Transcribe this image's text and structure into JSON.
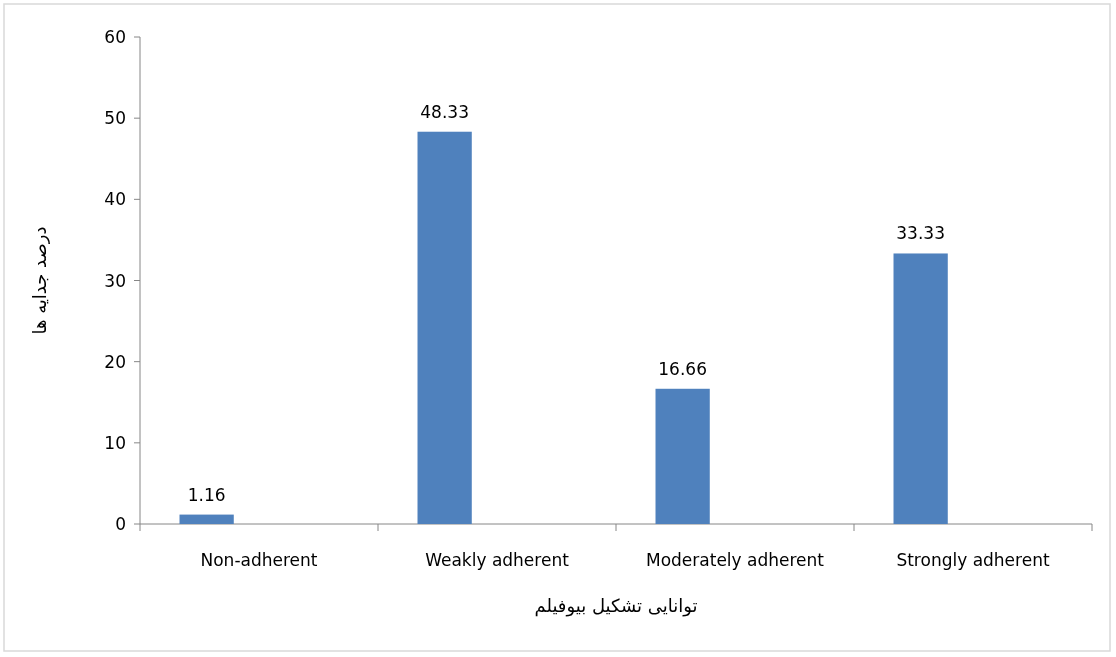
{
  "chart_data": {
    "type": "bar",
    "categories": [
      "Non-adherent",
      "Weakly adherent",
      "Moderately adherent",
      "Strongly adherent"
    ],
    "values": [
      1.16,
      48.33,
      16.66,
      33.33
    ],
    "color": "#4f81bd",
    "xlabel": "توانایی تشکیل بیوفیلم",
    "ylabel": "درصد جدایه ها",
    "ylim": [
      0,
      60
    ],
    "yticks": [
      0,
      10,
      20,
      30,
      40,
      50,
      60
    ],
    "data_labels": true,
    "grid": false
  }
}
